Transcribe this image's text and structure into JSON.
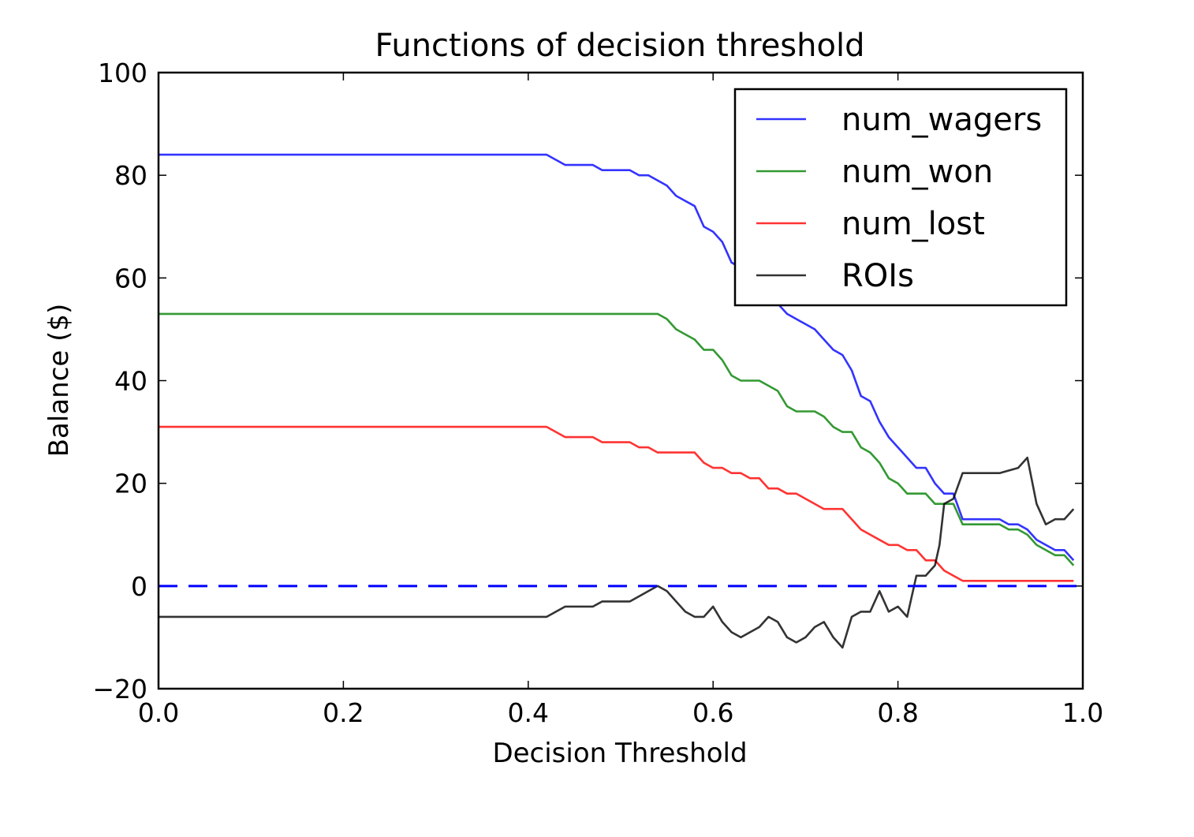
{
  "chart_data": {
    "type": "line",
    "title": "Functions of decision threshold",
    "xlabel": "Decision Threshold",
    "ylabel": "Balance ($)",
    "xlim": [
      0.0,
      1.0
    ],
    "ylim": [
      -20,
      100
    ],
    "xticks": [
      "0.0",
      "0.2",
      "0.4",
      "0.6",
      "0.8",
      "1.0"
    ],
    "yticks": [
      "100",
      "80",
      "60",
      "40",
      "20",
      "0",
      "−20"
    ],
    "grid": false,
    "legend_position": "top-right",
    "reference_line": {
      "y": 0,
      "style": "dashed",
      "color": "#0000ff"
    },
    "series": [
      {
        "name": "num_wagers",
        "color": "#0000ff",
        "x": [
          0.0,
          0.42,
          0.44,
          0.47,
          0.48,
          0.51,
          0.52,
          0.53,
          0.54,
          0.55,
          0.56,
          0.57,
          0.58,
          0.59,
          0.6,
          0.61,
          0.62,
          0.63,
          0.65,
          0.66,
          0.67,
          0.68,
          0.69,
          0.7,
          0.71,
          0.72,
          0.73,
          0.74,
          0.75,
          0.76,
          0.77,
          0.78,
          0.79,
          0.8,
          0.81,
          0.82,
          0.83,
          0.84,
          0.85,
          0.86,
          0.87,
          0.88,
          0.91,
          0.92,
          0.93,
          0.94,
          0.95,
          0.96,
          0.97,
          0.98,
          0.99
        ],
        "values": [
          84,
          84,
          82,
          82,
          81,
          81,
          80,
          80,
          79,
          78,
          76,
          75,
          74,
          70,
          69,
          67,
          63,
          62,
          58,
          57,
          55,
          53,
          52,
          51,
          50,
          48,
          46,
          45,
          42,
          37,
          36,
          32,
          29,
          27,
          25,
          23,
          23,
          20,
          18,
          18,
          13,
          13,
          13,
          12,
          12,
          11,
          9,
          8,
          7,
          7,
          5
        ]
      },
      {
        "name": "num_won",
        "color": "#008000",
        "x": [
          0.0,
          0.54,
          0.55,
          0.56,
          0.57,
          0.58,
          0.59,
          0.6,
          0.61,
          0.62,
          0.63,
          0.65,
          0.66,
          0.67,
          0.68,
          0.69,
          0.7,
          0.71,
          0.72,
          0.73,
          0.74,
          0.75,
          0.76,
          0.77,
          0.78,
          0.79,
          0.8,
          0.81,
          0.82,
          0.83,
          0.84,
          0.85,
          0.86,
          0.87,
          0.88,
          0.91,
          0.92,
          0.93,
          0.94,
          0.95,
          0.96,
          0.97,
          0.98,
          0.99
        ],
        "values": [
          53,
          53,
          52,
          50,
          49,
          48,
          46,
          46,
          44,
          41,
          40,
          40,
          39,
          38,
          35,
          34,
          34,
          34,
          33,
          31,
          30,
          30,
          27,
          26,
          24,
          21,
          20,
          18,
          18,
          18,
          16,
          16,
          16,
          12,
          12,
          12,
          11,
          11,
          10,
          8,
          7,
          6,
          6,
          4
        ]
      },
      {
        "name": "num_lost",
        "color": "#ff0000",
        "x": [
          0.0,
          0.42,
          0.44,
          0.47,
          0.48,
          0.5,
          0.51,
          0.52,
          0.53,
          0.54,
          0.58,
          0.59,
          0.6,
          0.61,
          0.62,
          0.63,
          0.64,
          0.65,
          0.66,
          0.67,
          0.68,
          0.69,
          0.7,
          0.71,
          0.72,
          0.74,
          0.75,
          0.76,
          0.77,
          0.78,
          0.79,
          0.8,
          0.81,
          0.82,
          0.83,
          0.84,
          0.85,
          0.86,
          0.87,
          0.99
        ],
        "values": [
          31,
          31,
          29,
          29,
          28,
          28,
          28,
          27,
          27,
          26,
          26,
          24,
          23,
          23,
          22,
          22,
          21,
          21,
          19,
          19,
          18,
          18,
          17,
          16,
          15,
          15,
          13,
          11,
          10,
          9,
          8,
          8,
          7,
          7,
          5,
          5,
          3,
          2,
          1,
          1
        ]
      },
      {
        "name": "ROIs",
        "color": "#000000",
        "x": [
          0.0,
          0.42,
          0.44,
          0.47,
          0.48,
          0.5,
          0.51,
          0.52,
          0.53,
          0.54,
          0.55,
          0.56,
          0.57,
          0.58,
          0.59,
          0.6,
          0.61,
          0.62,
          0.63,
          0.64,
          0.65,
          0.66,
          0.67,
          0.68,
          0.69,
          0.7,
          0.71,
          0.72,
          0.73,
          0.74,
          0.75,
          0.76,
          0.77,
          0.78,
          0.79,
          0.8,
          0.81,
          0.82,
          0.83,
          0.84,
          0.845,
          0.85,
          0.86,
          0.87,
          0.9,
          0.91,
          0.93,
          0.94,
          0.95,
          0.96,
          0.97,
          0.98,
          0.99
        ],
        "values": [
          -6,
          -6,
          -4,
          -4,
          -3,
          -3,
          -3,
          -2,
          -1,
          0,
          -1,
          -3,
          -5,
          -6,
          -6,
          -4,
          -7,
          -9,
          -10,
          -9,
          -8,
          -6,
          -7,
          -10,
          -11,
          -10,
          -8,
          -7,
          -10,
          -12,
          -6,
          -5,
          -5,
          -1,
          -5,
          -4,
          -6,
          2,
          2,
          4,
          8,
          16,
          17,
          22,
          22,
          22,
          23,
          25,
          16,
          12,
          13,
          13,
          15
        ]
      }
    ]
  }
}
